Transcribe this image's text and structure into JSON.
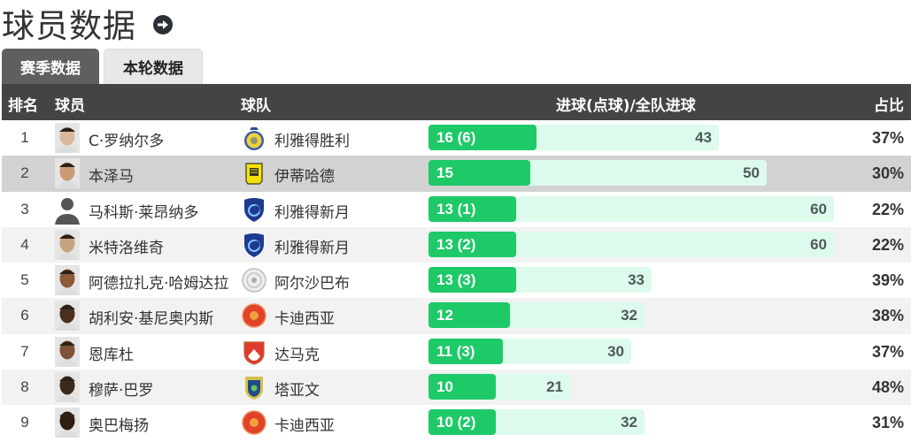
{
  "header": {
    "title": "球员数据",
    "arrow_icon": "circle-arrow-right-icon"
  },
  "tabs": [
    {
      "label": "赛季数据",
      "active": true
    },
    {
      "label": "本轮数据",
      "active": false
    }
  ],
  "table": {
    "columns": {
      "rank": "排名",
      "player": "球员",
      "team": "球队",
      "goals": "进球(点球)/全队进球",
      "share": "占比"
    },
    "colors": {
      "goal_bar": "#1ec968",
      "total_bar": "#dcfbec",
      "header_bg": "#444444"
    },
    "rows": [
      {
        "rank": "1",
        "player": "C·罗纳尔多",
        "team": "利雅得胜利",
        "goals": 16,
        "goals_label": "16 (6)",
        "team_goals": 43,
        "team_goals_label": "43",
        "share": "37%",
        "crest": "al-nassr",
        "style": "white"
      },
      {
        "rank": "2",
        "player": "本泽马",
        "team": "伊蒂哈德",
        "goals": 15,
        "goals_label": "15",
        "team_goals": 50,
        "team_goals_label": "50",
        "share": "30%",
        "crest": "al-ittihad",
        "style": "hl"
      },
      {
        "rank": "3",
        "player": "马科斯·莱昂纳多",
        "team": "利雅得新月",
        "goals": 13,
        "goals_label": "13 (1)",
        "team_goals": 60,
        "team_goals_label": "60",
        "share": "22%",
        "crest": "al-hilal",
        "style": "white"
      },
      {
        "rank": "4",
        "player": "米特洛维奇",
        "team": "利雅得新月",
        "goals": 13,
        "goals_label": "13 (2)",
        "team_goals": 60,
        "team_goals_label": "60",
        "share": "22%",
        "crest": "al-hilal",
        "style": "grey"
      },
      {
        "rank": "5",
        "player": "阿德拉扎克·哈姆达拉",
        "team": "阿尔沙巴布",
        "goals": 13,
        "goals_label": "13 (3)",
        "team_goals": 33,
        "team_goals_label": "33",
        "share": "39%",
        "crest": "al-shabab",
        "style": "white"
      },
      {
        "rank": "6",
        "player": "胡利安·基尼奥内斯",
        "team": "卡迪西亚",
        "goals": 12,
        "goals_label": "12",
        "team_goals": 32,
        "team_goals_label": "32",
        "share": "38%",
        "crest": "al-qadsiah",
        "style": "grey"
      },
      {
        "rank": "7",
        "player": "恩库杜",
        "team": "达马克",
        "goals": 11,
        "goals_label": "11 (3)",
        "team_goals": 30,
        "team_goals_label": "30",
        "share": "37%",
        "crest": "damac",
        "style": "white"
      },
      {
        "rank": "8",
        "player": "穆萨·巴罗",
        "team": "塔亚文",
        "goals": 10,
        "goals_label": "10",
        "team_goals": 21,
        "team_goals_label": "21",
        "share": "48%",
        "crest": "al-taawoun",
        "style": "grey"
      },
      {
        "rank": "9",
        "player": "奥巴梅扬",
        "team": "卡迪西亚",
        "goals": 10,
        "goals_label": "10 (2)",
        "team_goals": 32,
        "team_goals_label": "32",
        "share": "31%",
        "crest": "al-qadsiah",
        "style": "white"
      }
    ]
  }
}
